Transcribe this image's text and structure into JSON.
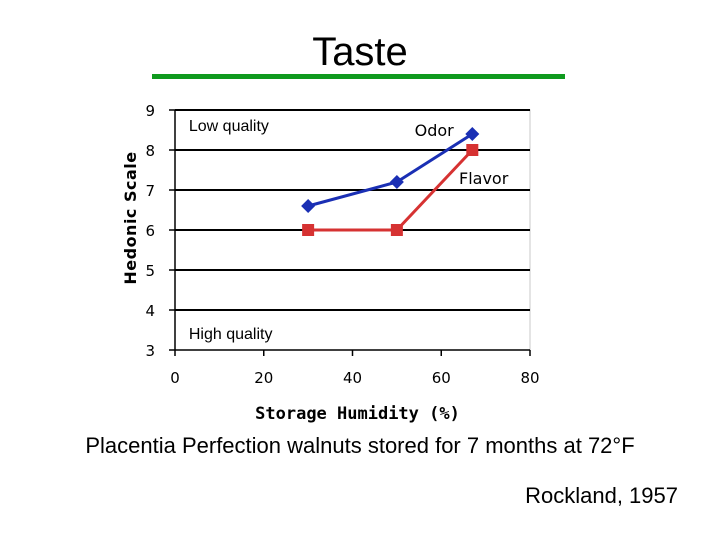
{
  "slide": {
    "title": "Taste",
    "caption": "Placentia Perfection walnuts stored for 7 months at 72°F",
    "credit": "Rockland, 1957",
    "underline_color": "#0f9a1e"
  },
  "chart_data": {
    "type": "line",
    "title": "",
    "xlabel": "Storage Humidity (%)",
    "ylabel": "Hedonic Scale",
    "xlim": [
      0,
      80
    ],
    "ylim": [
      3,
      9
    ],
    "x_ticks": [
      "0",
      "20",
      "40",
      "60",
      "80"
    ],
    "y_ticks": [
      "3",
      "4",
      "5",
      "6",
      "7",
      "8",
      "9"
    ],
    "grid": "horizontal",
    "annotations": [
      {
        "text": "Low quality",
        "x": 2,
        "y": 8.6
      },
      {
        "text": "High quality",
        "x": 2,
        "y": 3.4
      }
    ],
    "series": [
      {
        "name": "Odor",
        "color": "#1a2fb4",
        "marker": "diamond",
        "x": [
          30,
          50,
          67
        ],
        "y": [
          6.6,
          7.2,
          8.4
        ],
        "label_at": {
          "x": 54,
          "y": 8.35
        }
      },
      {
        "name": "Flavor",
        "color": "#d63232",
        "marker": "square",
        "x": [
          30,
          50,
          67
        ],
        "y": [
          6.0,
          6.0,
          8.0
        ],
        "label_at": {
          "x": 64,
          "y": 7.15
        }
      }
    ]
  }
}
